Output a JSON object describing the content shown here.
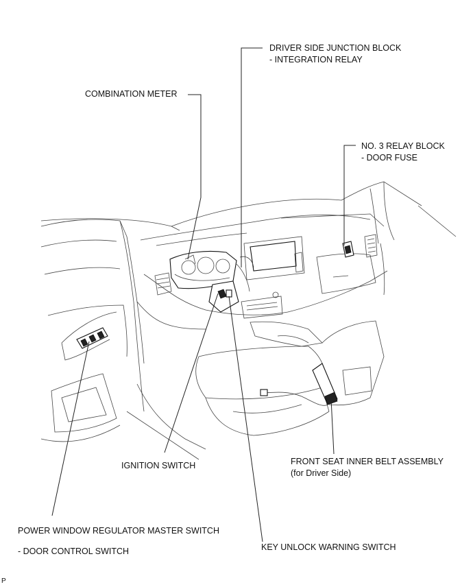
{
  "labels": {
    "junction_block": "DRIVER SIDE JUNCTION BLOCK",
    "junction_block_sub": "- INTEGRATION RELAY",
    "combination_meter": "COMBINATION METER",
    "relay_block": "NO. 3 RELAY BLOCK",
    "relay_block_sub": "- DOOR FUSE",
    "front_seat_belt": "FRONT SEAT INNER BELT ASSEMBLY",
    "front_seat_belt_sub": "(for Driver Side)",
    "ignition_switch": "IGNITION SWITCH",
    "power_window_switch": "POWER WINDOW REGULATOR MASTER SWITCH",
    "power_window_switch_sub": "- DOOR CONTROL SWITCH",
    "key_unlock_switch": "KEY UNLOCK WARNING SWITCH",
    "corner_mark": "P"
  }
}
